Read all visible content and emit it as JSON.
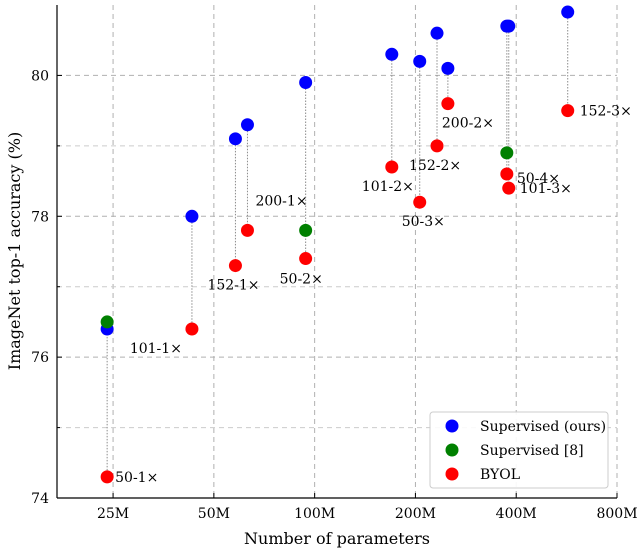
{
  "chart_data": {
    "type": "scatter",
    "xlabel": "Number of parameters",
    "ylabel": "ImageNet top-1 accuracy (%)",
    "x_scale": "log",
    "xlim": [
      17,
      800
    ],
    "ylim": [
      74,
      81
    ],
    "x_ticks": [
      {
        "value": 25,
        "label": "25M"
      },
      {
        "value": 50,
        "label": "50M"
      },
      {
        "value": 100,
        "label": "100M"
      },
      {
        "value": 200,
        "label": "200M"
      },
      {
        "value": 400,
        "label": "400M"
      },
      {
        "value": 800,
        "label": "800M"
      }
    ],
    "y_ticks": [
      {
        "value": 74,
        "label": "74"
      },
      {
        "value": 76,
        "label": "76"
      },
      {
        "value": 78,
        "label": "78"
      },
      {
        "value": 80,
        "label": "80"
      }
    ],
    "grid": true,
    "legend_position": "bottom-right",
    "colors": {
      "supervised_ours": "#0000ff",
      "supervised_ref": "#008000",
      "byol": "#ff0000"
    },
    "series": [
      {
        "name": "Supervised (ours)",
        "color": "#0000ff",
        "points": [
          {
            "x": 24,
            "y": 76.4
          },
          {
            "x": 43,
            "y": 78.0
          },
          {
            "x": 58,
            "y": 79.1
          },
          {
            "x": 63,
            "y": 79.3
          },
          {
            "x": 94,
            "y": 79.9
          },
          {
            "x": 170,
            "y": 80.3
          },
          {
            "x": 206,
            "y": 80.2
          },
          {
            "x": 232,
            "y": 80.6
          },
          {
            "x": 250,
            "y": 80.1
          },
          {
            "x": 375,
            "y": 80.7
          },
          {
            "x": 380,
            "y": 80.7
          },
          {
            "x": 570,
            "y": 80.9
          }
        ]
      },
      {
        "name": "Supervised [8]",
        "color": "#008000",
        "points": [
          {
            "x": 24,
            "y": 76.5
          },
          {
            "x": 94,
            "y": 77.8
          },
          {
            "x": 375,
            "y": 78.9
          }
        ]
      },
      {
        "name": "BYOL",
        "color": "#ff0000",
        "points": [
          {
            "x": 24,
            "y": 74.3,
            "label": "50-1×"
          },
          {
            "x": 43,
            "y": 76.4,
            "label": "101-1×"
          },
          {
            "x": 58,
            "y": 77.3,
            "label": "152-1×"
          },
          {
            "x": 63,
            "y": 77.8,
            "label": "200-1×"
          },
          {
            "x": 94,
            "y": 77.4,
            "label": "50-2×"
          },
          {
            "x": 170,
            "y": 78.7,
            "label": "101-2×"
          },
          {
            "x": 206,
            "y": 78.2,
            "label": "50-3×"
          },
          {
            "x": 232,
            "y": 79.0,
            "label": "152-2×"
          },
          {
            "x": 250,
            "y": 79.6,
            "label": "200-2×"
          },
          {
            "x": 375,
            "y": 78.6,
            "label": "50-4×"
          },
          {
            "x": 380,
            "y": 78.4,
            "label": "101-3×"
          },
          {
            "x": 570,
            "y": 79.5,
            "label": "152-3×"
          }
        ]
      }
    ],
    "connectors": [
      {
        "x": 24,
        "y1": 76.5,
        "y2": 74.3
      },
      {
        "x": 43,
        "y1": 78.0,
        "y2": 76.4
      },
      {
        "x": 58,
        "y1": 79.1,
        "y2": 77.3
      },
      {
        "x": 63,
        "y1": 79.3,
        "y2": 77.8
      },
      {
        "x": 94,
        "y1": 79.9,
        "y2": 77.4
      },
      {
        "x": 170,
        "y1": 80.3,
        "y2": 78.7
      },
      {
        "x": 206,
        "y1": 80.2,
        "y2": 78.2
      },
      {
        "x": 232,
        "y1": 80.6,
        "y2": 79.0
      },
      {
        "x": 250,
        "y1": 80.1,
        "y2": 79.6
      },
      {
        "x": 375,
        "y1": 80.7,
        "y2": 78.6
      },
      {
        "x": 380,
        "y1": 80.7,
        "y2": 78.4
      },
      {
        "x": 570,
        "y1": 80.9,
        "y2": 79.5
      }
    ]
  }
}
